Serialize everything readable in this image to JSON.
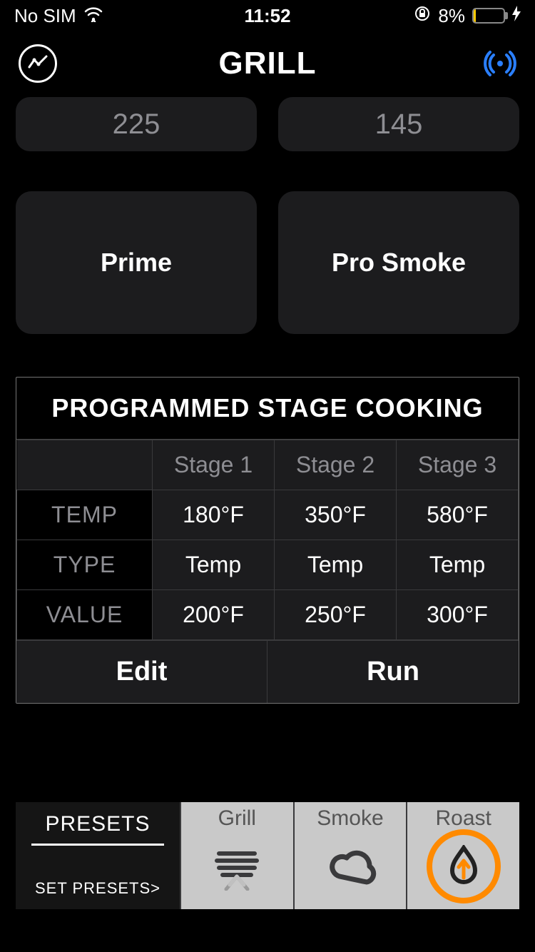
{
  "status": {
    "carrier": "No SIM",
    "time": "11:52",
    "battery_percent": "8%",
    "battery_fill_pct": 8,
    "battery_fill_color": "#ffcc00"
  },
  "header": {
    "title": "GRILL"
  },
  "top_values": {
    "left": "225",
    "right": "145"
  },
  "modes": {
    "left": "Prime",
    "right": "Pro Smoke"
  },
  "stage_cooking": {
    "title": "PROGRAMMED STAGE COOKING",
    "columns": [
      "Stage 1",
      "Stage 2",
      "Stage 3"
    ],
    "rows": [
      {
        "label": "TEMP",
        "cells": [
          "180°F",
          "350°F",
          "580°F"
        ]
      },
      {
        "label": "TYPE",
        "cells": [
          "Temp",
          "Temp",
          "Temp"
        ]
      },
      {
        "label": "VALUE",
        "cells": [
          "200°F",
          "250°F",
          "300°F"
        ]
      }
    ],
    "edit_label": "Edit",
    "run_label": "Run"
  },
  "presets": {
    "title": "PRESETS",
    "set_label": "SET PRESETS>",
    "items": [
      {
        "label": "Grill",
        "icon": "grill-lines-icon",
        "active": false
      },
      {
        "label": "Smoke",
        "icon": "cloud-icon",
        "active": false
      },
      {
        "label": "Roast",
        "icon": "flame-icon",
        "active": true
      }
    ],
    "active_ring_color": "#ff8a00"
  },
  "colors": {
    "bg": "#000000",
    "card": "#1c1c1e",
    "muted": "#8e8e93",
    "border": "#3a3a3c",
    "accent_blue": "#2a7fff",
    "accent_orange": "#ff8a00"
  }
}
